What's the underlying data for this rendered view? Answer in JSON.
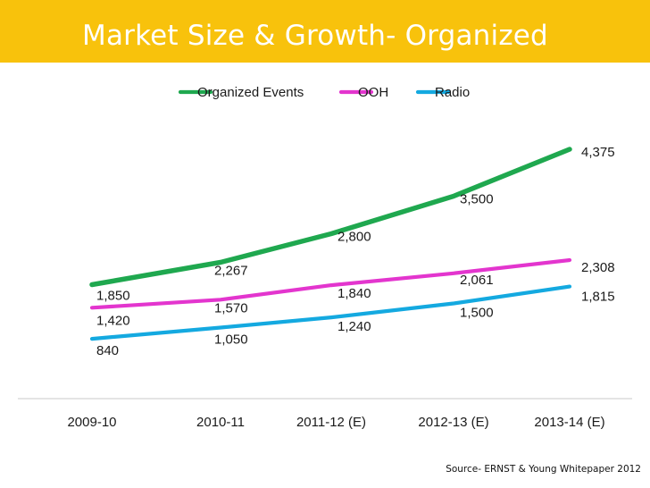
{
  "title": "Market Size & Growth- Organized",
  "source": "Source- ERNST & Young Whitepaper 2012",
  "colors": {
    "banner": "#F8C20C",
    "title_text": "#ffffff"
  },
  "chart_data": {
    "type": "line",
    "categories": [
      "2009-10",
      "2010-11",
      "2011-12 (E)",
      "2012-13 (E)",
      "2013-14 (E)"
    ],
    "series": [
      {
        "name": "Organized Events",
        "color": "#1FA84F",
        "values": [
          1850,
          2267,
          2800,
          3500,
          4375
        ]
      },
      {
        "name": "OOH",
        "color": "#E335CE",
        "values": [
          1420,
          1570,
          1840,
          2061,
          2308
        ]
      },
      {
        "name": "Radio",
        "color": "#14A9E0",
        "values": [
          840,
          1050,
          1240,
          1500,
          1815
        ]
      }
    ],
    "data_labels": [
      [
        "1,850",
        "2,267",
        "2,800",
        "3,500",
        "4,375"
      ],
      [
        "1,420",
        "1,570",
        "1,840",
        "2,061",
        "2,308"
      ],
      [
        "840",
        "1,050",
        "1,240",
        "1,500",
        "1,815"
      ]
    ],
    "legend_position": "top",
    "grid": false
  }
}
